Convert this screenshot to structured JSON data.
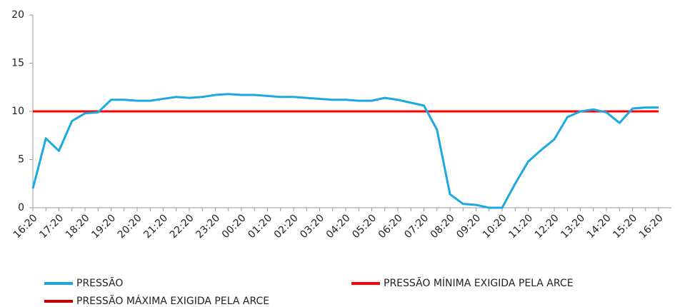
{
  "chart_data": {
    "type": "line",
    "categories": [
      "16:20",
      null,
      "17:20",
      null,
      "18:20",
      null,
      "19:20",
      null,
      "20:20",
      null,
      "21:20",
      null,
      "22:20",
      null,
      "23:20",
      null,
      "00:20",
      null,
      "01:20",
      null,
      "02:20",
      null,
      "03:20",
      null,
      "04:20",
      null,
      "05:20",
      null,
      "06:20",
      null,
      "07:20",
      null,
      "08:20",
      null,
      "09:20",
      null,
      "10:20",
      null,
      "11:20",
      null,
      "12:20",
      null,
      "13:20",
      null,
      "14:20",
      null,
      "15:20",
      null,
      "16:20"
    ],
    "series": [
      {
        "name": "PRESSÃO",
        "color": "#1ca8e0",
        "values": [
          2,
          7.2,
          5.9,
          9.0,
          9.8,
          9.9,
          11.2,
          11.2,
          11.1,
          11.1,
          11.3,
          11.5,
          11.4,
          11.5,
          11.7,
          11.8,
          11.7,
          11.7,
          11.6,
          11.5,
          11.5,
          11.4,
          11.3,
          11.2,
          11.2,
          11.1,
          11.1,
          11.4,
          11.2,
          10.9,
          10.6,
          8.1,
          1.4,
          0.4,
          0.3,
          0,
          0,
          2.5,
          4.8,
          6.0,
          7.1,
          9.4,
          10.0,
          10.2,
          9.9,
          8.8,
          10.3,
          10.4,
          10.4
        ]
      },
      {
        "name": "PRESSÃO MÍNIMA EXIGIDA PELA ARCE",
        "color": "#ff0000",
        "values": [
          10,
          10,
          10,
          10,
          10,
          10,
          10,
          10,
          10,
          10,
          10,
          10,
          10,
          10,
          10,
          10,
          10,
          10,
          10,
          10,
          10,
          10,
          10,
          10,
          10,
          10,
          10,
          10,
          10,
          10,
          10,
          10,
          10,
          10,
          10,
          10,
          10,
          10,
          10,
          10,
          10,
          10,
          10,
          10,
          10,
          10,
          10,
          10,
          10
        ]
      },
      {
        "name": "PRESSÃO MÁXIMA EXIGIDA PELA ARCE",
        "color": "#c00000",
        "values": [
          10,
          10,
          10,
          10,
          10,
          10,
          10,
          10,
          10,
          10,
          10,
          10,
          10,
          10,
          10,
          10,
          10,
          10,
          10,
          10,
          10,
          10,
          10,
          10,
          10,
          10,
          10,
          10,
          10,
          10,
          10,
          10,
          10,
          10,
          10,
          10,
          10,
          10,
          10,
          10,
          10,
          10,
          10,
          10,
          10,
          10,
          10,
          10,
          10
        ]
      }
    ],
    "ylim": [
      0,
      20
    ],
    "yticks": [
      0,
      5,
      10,
      15,
      20
    ],
    "grid": false
  }
}
